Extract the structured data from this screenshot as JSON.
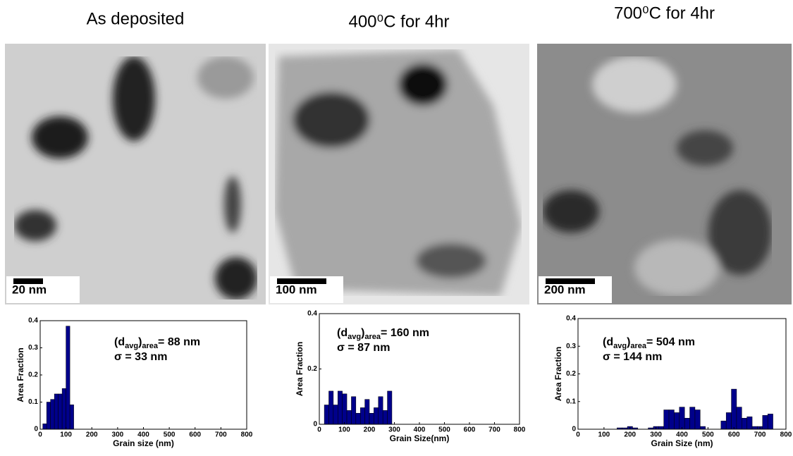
{
  "panels": [
    {
      "title": "As deposited",
      "scale_bar": "20 nm"
    },
    {
      "title": "400⁰C for 4hr",
      "scale_bar": "100 nm"
    },
    {
      "title": "700⁰C for 4hr",
      "scale_bar": "200 nm"
    }
  ],
  "chart_data": [
    {
      "type": "histogram",
      "color": "#00008b",
      "ylabel": "Area Fraction",
      "xlabel": "Grain size (nm)",
      "annotation": [
        "(d",
        "avg",
        ")",
        "area",
        "= 88 nm"
      ],
      "sigma": "σ = 33 nm",
      "bins": [
        10,
        25,
        40,
        55,
        70,
        85,
        100,
        115,
        130
      ],
      "values": [
        0.02,
        0.1,
        0.11,
        0.13,
        0.13,
        0.15,
        0.38,
        0.09
      ],
      "xlim": [
        0,
        800
      ],
      "xticks": [
        0,
        100,
        200,
        300,
        400,
        500,
        600,
        700,
        800
      ],
      "ylim": [
        0,
        0.4
      ],
      "yticks": [
        0,
        0.1,
        0.2,
        0.3,
        0.4
      ]
    },
    {
      "type": "histogram",
      "color": "#00008b",
      "ylabel": "Area Fraction",
      "xlabel": "Grain Size(nm)",
      "annotation": [
        "(d",
        "avg",
        ")",
        "area",
        "= 160 nm"
      ],
      "sigma": "σ = 87 nm",
      "bins": [
        20,
        38,
        56,
        74,
        92,
        110,
        128,
        146,
        164,
        182,
        200,
        218,
        236,
        254,
        272,
        290
      ],
      "values": [
        0.07,
        0.12,
        0.07,
        0.12,
        0.11,
        0.05,
        0.1,
        0.04,
        0.06,
        0.09,
        0.04,
        0.06,
        0.1,
        0.05,
        0.12
      ],
      "xlim": [
        0,
        800
      ],
      "xticks": [
        0,
        100,
        200,
        300,
        400,
        500,
        600,
        700,
        800
      ],
      "ylim": [
        0,
        0.4
      ],
      "yticks": [
        0,
        0.2,
        0.4
      ]
    },
    {
      "type": "histogram",
      "color": "#00008b",
      "ylabel": "Area Fraction",
      "xlabel": "Grain Size (nm)",
      "annotation": [
        "(d",
        "avg",
        ")",
        "area",
        "= 504 nm"
      ],
      "sigma": "σ = 144 nm",
      "bins": [
        150,
        170,
        190,
        210,
        230,
        250,
        270,
        290,
        310,
        330,
        350,
        370,
        390,
        410,
        430,
        450,
        470,
        490,
        510,
        530,
        550,
        570,
        590,
        610,
        630,
        650,
        670,
        690,
        710,
        730,
        750
      ],
      "values": [
        0.005,
        0.005,
        0.01,
        0.005,
        0,
        0,
        0.005,
        0.01,
        0.01,
        0.07,
        0.07,
        0.06,
        0.08,
        0.04,
        0.08,
        0.07,
        0.01,
        0,
        0,
        0,
        0.03,
        0.06,
        0.145,
        0.08,
        0.04,
        0.045,
        0.01,
        0.01,
        0.05,
        0.055
      ],
      "xlim": [
        0,
        800
      ],
      "xticks": [
        0,
        100,
        200,
        300,
        400,
        500,
        600,
        700,
        800
      ],
      "ylim": [
        0,
        0.4
      ],
      "yticks": [
        0,
        0.1,
        0.2,
        0.3,
        0.4
      ]
    }
  ]
}
